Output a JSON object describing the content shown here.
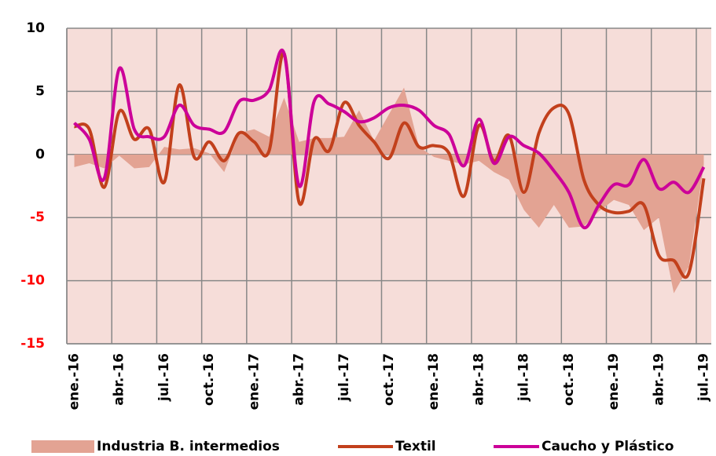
{
  "chart_data": {
    "type": "line",
    "categories": [
      "ene.-16",
      null,
      null,
      "abr.-16",
      null,
      null,
      "jul.-16",
      null,
      null,
      "oct.-16",
      null,
      null,
      "ene.-17",
      null,
      null,
      "abr.-17",
      null,
      null,
      "jul.-17",
      null,
      null,
      "oct.-17",
      null,
      null,
      "ene.-18",
      null,
      null,
      "abr.-18",
      null,
      null,
      "jul.-18",
      null,
      null,
      "oct.-18",
      null,
      null,
      "ene.-19",
      null,
      null,
      "abr.-19",
      null,
      null,
      "jul.-19"
    ],
    "series": [
      {
        "name": "Industria B. intermedios",
        "kind": "area",
        "color": "#e3a393",
        "values": [
          -1.0,
          -0.7,
          -1.1,
          -0.1,
          -1.1,
          -1.0,
          0.6,
          0.4,
          0.5,
          0.1,
          -1.4,
          1.7,
          2.0,
          1.4,
          4.5,
          1.0,
          1.3,
          1.3,
          1.4,
          3.5,
          1.1,
          3.2,
          5.3,
          0.6,
          -0.2,
          -0.5,
          -0.8,
          -0.5,
          -1.4,
          -2.0,
          -4.4,
          -5.8,
          -4.0,
          -5.8,
          -5.7,
          -4.5,
          -3.6,
          -4.0,
          -6.0,
          -5.0,
          -11.0,
          -8.9,
          -0.8
        ]
      },
      {
        "name": "Textil",
        "kind": "line",
        "color": "#c2401c",
        "values": [
          2.2,
          2.0,
          -2.6,
          3.4,
          1.2,
          2.0,
          -2.2,
          5.5,
          -0.2,
          1.0,
          -0.5,
          1.7,
          1.0,
          0.3,
          8.0,
          -3.8,
          1.2,
          0.3,
          4.1,
          2.3,
          1.0,
          -0.3,
          2.5,
          0.6,
          0.7,
          0.1,
          -3.3,
          2.3,
          -0.5,
          1.5,
          -3.0,
          1.7,
          3.7,
          3.2,
          -2.0,
          -4.0,
          -4.6,
          -4.5,
          -4.0,
          -8.0,
          -8.4,
          -9.4,
          -1.9
        ]
      },
      {
        "name": "Caucho y Plástico",
        "kind": "line",
        "color": "#cc0099",
        "values": [
          2.5,
          1.2,
          -1.9,
          6.8,
          2.0,
          1.4,
          1.4,
          3.9,
          2.3,
          2.0,
          1.8,
          4.2,
          4.3,
          5.1,
          8.0,
          -2.5,
          4.2,
          4.0,
          3.4,
          2.6,
          2.9,
          3.7,
          3.9,
          3.5,
          2.3,
          1.6,
          -0.9,
          2.8,
          -0.7,
          1.4,
          0.7,
          0.1,
          -1.3,
          -3.0,
          -5.8,
          -4.0,
          -2.4,
          -2.4,
          -0.4,
          -2.7,
          -2.2,
          -3.0,
          -1.0
        ]
      }
    ],
    "ylim": [
      -15,
      10
    ],
    "yticks": [
      -15,
      -10,
      -5,
      0,
      5,
      10
    ],
    "negative_tick_color": "#ff0000",
    "plot_background": "#f6ddd9",
    "grid": true,
    "legend": "bottom"
  }
}
